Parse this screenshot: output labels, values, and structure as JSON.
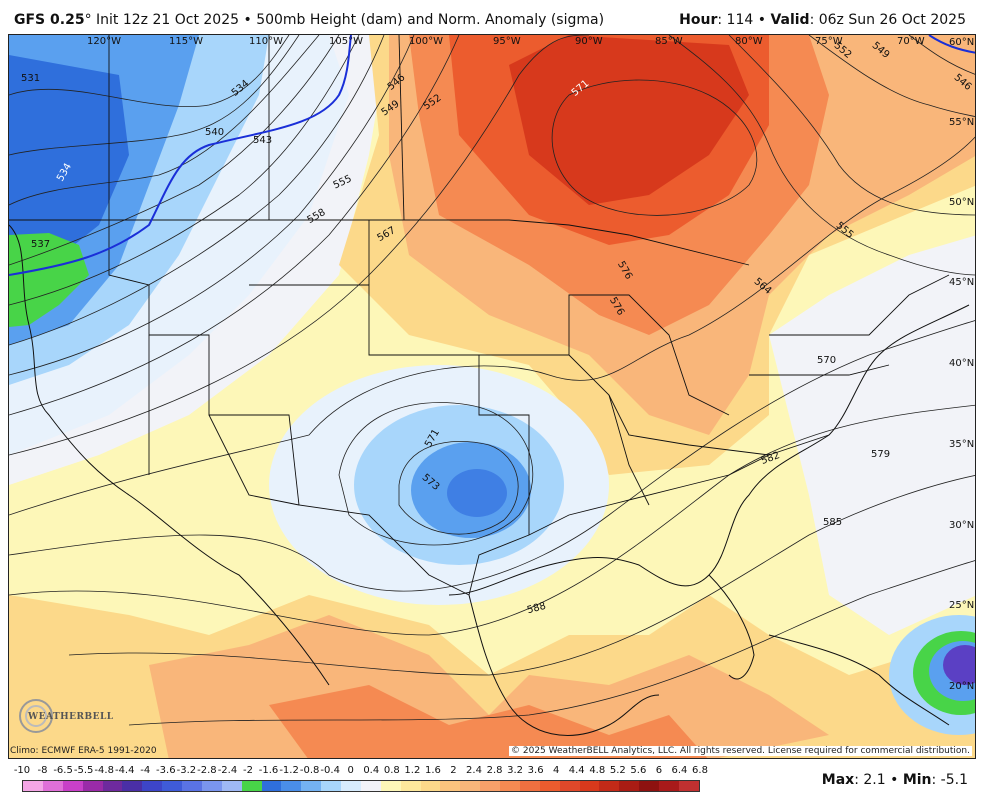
{
  "header": {
    "model": "GFS 0.25",
    "degree": "°",
    "init": "Init 12z 21 Oct 2025",
    "sep": " • ",
    "product": "500mb Height (dam) and Norm. Anomaly (sigma)",
    "hour_label": "Hour",
    "hour_value": ": 114",
    "valid_label": "Valid",
    "valid_value": ": 06z Sun 26 Oct 2025"
  },
  "map": {
    "longitude_labels": [
      "120°W",
      "115°W",
      "110°W",
      "105°W",
      "100°W",
      "95°W",
      "90°W",
      "85°W",
      "80°W",
      "75°W",
      "70°W"
    ],
    "latitude_labels": [
      "60°N",
      "55°N",
      "50°N",
      "45°N",
      "40°N",
      "35°N",
      "30°N",
      "25°N",
      "20°N"
    ],
    "contour_labels": [
      "531",
      "534",
      "534",
      "537",
      "540",
      "543",
      "546",
      "549",
      "552",
      "555",
      "558",
      "567",
      "571",
      "576",
      "576",
      "549",
      "552",
      "546",
      "555",
      "564",
      "570",
      "579",
      "582",
      "585",
      "588",
      "573",
      "571"
    ],
    "colors": {
      "deep_blue": "#2f6fdc",
      "mid_blue": "#5aa0ef",
      "light_blue": "#a8d6fb",
      "pale_blue": "#e8f2fc",
      "near_zero": "#f2f3f8",
      "pale_yellow": "#fdf7b8",
      "yellow": "#fcd98a",
      "light_orange": "#f9b67a",
      "orange": "#f58a52",
      "red_orange": "#ec5c2e",
      "red": "#d7391c",
      "green": "#48d448",
      "purple": "#5b40c4"
    }
  },
  "footer": {
    "climo": "Climo: ECMWF ERA-5 1991-2020",
    "copyright": "© 2025 WeatherBELL Analytics, LLC. All rights reserved. License required for commercial distribution.",
    "logo_text": "WEATHERBELL",
    "max_label": "Max",
    "max_value": ": 2.1",
    "bullet": " • ",
    "min_label": "Min",
    "min_value": ": -5.1"
  },
  "colorbar": {
    "labels": [
      "-10",
      "-8",
      "-6.5",
      "-5.5",
      "-4.8",
      "-4.4",
      "-4",
      "-3.6",
      "-3.2",
      "-2.8",
      "-2.4",
      "-2",
      "-1.6",
      "-1.2",
      "-0.8",
      "-0.4",
      "0",
      "0.4",
      "0.8",
      "1.2",
      "1.6",
      "2",
      "2.4",
      "2.8",
      "3.2",
      "3.6",
      "4",
      "4.4",
      "4.8",
      "5.2",
      "5.6",
      "6",
      "6.4",
      "6.8"
    ],
    "colors": [
      "#f4a6e6",
      "#e070d8",
      "#c840c8",
      "#9a2ba8",
      "#6e2a9e",
      "#4a2fa6",
      "#3d45c8",
      "#3f5bd8",
      "#5a73e4",
      "#7a95ee",
      "#9fb8f4",
      "#48d448",
      "#2f6fdc",
      "#4a8ee8",
      "#74b2f2",
      "#a8d6fb",
      "#d7ecfd",
      "#f2f3f8",
      "#fdf7b8",
      "#fde89c",
      "#fcd98a",
      "#fbc47e",
      "#f9b67a",
      "#f7a06a",
      "#f58a52",
      "#ef7040",
      "#ec5c2e",
      "#e0482a",
      "#d7391c",
      "#c22a18",
      "#a91c14",
      "#8e1210",
      "#a81a1a",
      "#c03030"
    ]
  }
}
